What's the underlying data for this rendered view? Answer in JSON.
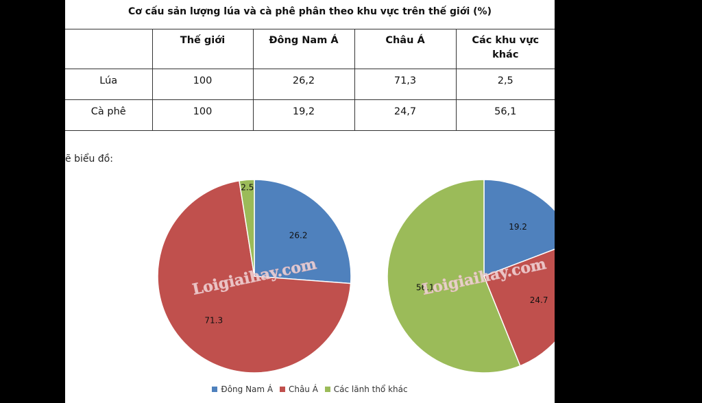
{
  "title": "Cơ cấu sản lượng lúa và cà phê phân theo khu vực trên thế giới (%)",
  "table": {
    "headers": [
      "",
      "Thế giới",
      "Đông Nam Á",
      "Châu Á",
      "Các khu vực khác"
    ],
    "rows": [
      [
        "Lúa",
        "100",
        "26,2",
        "71,3",
        "2,5"
      ],
      [
        "Cà phê",
        "100",
        "19,2",
        "24,7",
        "56,1"
      ]
    ]
  },
  "caption": "ẽ biểu đồ:",
  "watermark": "Loigiaihay.com",
  "chart_data": [
    {
      "type": "pie",
      "categories": [
        "Đông Nam Á",
        "Châu Á",
        "Các lãnh thổ khác"
      ],
      "values": [
        26.2,
        71.3,
        2.5
      ],
      "data_labels": [
        "26.2",
        "71.3",
        "2.5"
      ],
      "colors": [
        "#4f81bd",
        "#c0504d",
        "#9bbb59"
      ],
      "legend": "bottom"
    },
    {
      "type": "pie",
      "categories": [
        "Đông Nam Á",
        "Châu Á",
        "Các lãnh thổ khác"
      ],
      "values": [
        19.2,
        24.7,
        56.1
      ],
      "data_labels": [
        "19.2",
        "24.7",
        "56.1"
      ],
      "colors": [
        "#4f81bd",
        "#c0504d",
        "#9bbb59"
      ],
      "legend": "bottom"
    }
  ],
  "legend": [
    {
      "label": "Đông Nam Á",
      "color": "#4f81bd"
    },
    {
      "label": "Châu Á",
      "color": "#c0504d"
    },
    {
      "label": "Các lãnh thổ khác",
      "color": "#9bbb59"
    }
  ]
}
